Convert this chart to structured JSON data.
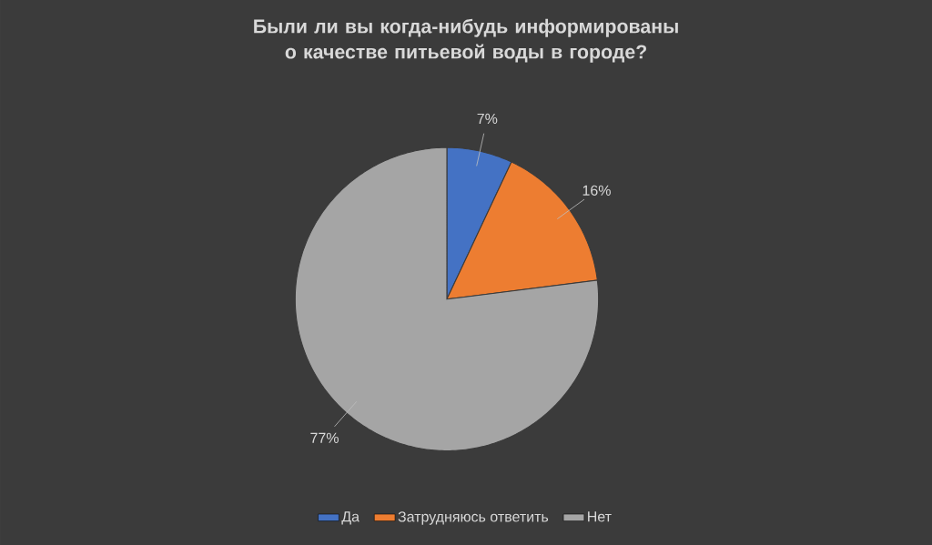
{
  "chart_data": {
    "type": "pie",
    "title": "Были ли вы когда-нибудь информированы о качестве питьевой воды в городе?",
    "categories": [
      "Да",
      "Затрудняюсь ответить",
      "Нет"
    ],
    "values": [
      7,
      16,
      77
    ],
    "colors": [
      "#4472c4",
      "#ed7d31",
      "#a5a5a5"
    ],
    "value_labels": [
      "7%",
      "16%",
      "77%"
    ],
    "legend": "bottom"
  }
}
